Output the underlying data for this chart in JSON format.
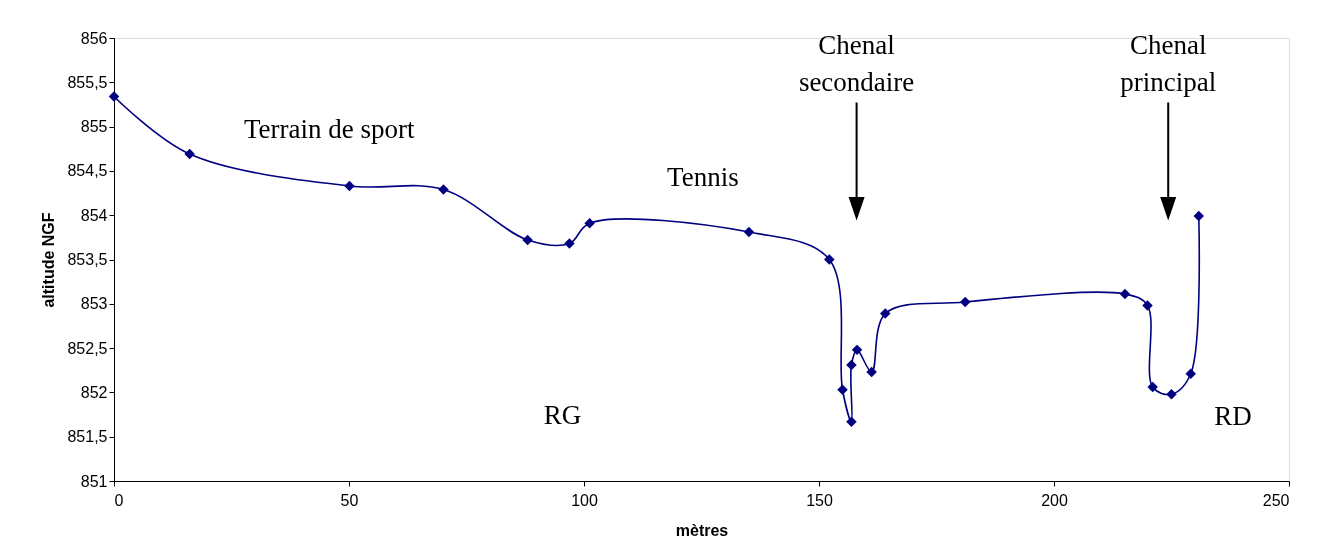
{
  "chart_data": {
    "type": "line",
    "xlabel": "mètres",
    "ylabel": "altitude NGF",
    "x": [
      0,
      16.1,
      50.1,
      70.1,
      88.0,
      96.9,
      101.2,
      135.1,
      152.2,
      155.0,
      156.9,
      156.9,
      158.1,
      161.2,
      164.1,
      181.1,
      215.1,
      219.9,
      221.0,
      225.0,
      229.1,
      230.8
    ],
    "series": [
      {
        "color": "#000080",
        "values": [
          855.34,
          854.69,
          854.33,
          854.29,
          853.72,
          853.68,
          853.91,
          853.81,
          853.5,
          852.03,
          851.67,
          852.31,
          852.48,
          852.23,
          852.89,
          853.02,
          853.11,
          852.98,
          852.06,
          851.98,
          852.21,
          853.99
        ]
      }
    ],
    "xlim": [
      0,
      250
    ],
    "xticks": [
      0,
      50,
      100,
      150,
      200,
      250
    ],
    "ylim": [
      851,
      856
    ],
    "yticks": [
      {
        "value": 851,
        "label": "851"
      },
      {
        "value": 851.5,
        "label": "851,5"
      },
      {
        "value": 852,
        "label": "852"
      },
      {
        "value": 852.5,
        "label": "852,5"
      },
      {
        "value": 853,
        "label": "853"
      },
      {
        "value": 853.5,
        "label": "853,5"
      },
      {
        "value": 854,
        "label": "854"
      },
      {
        "value": 854.5,
        "label": "854,5"
      },
      {
        "value": 855,
        "label": "855"
      },
      {
        "value": 855.5,
        "label": "855,5"
      },
      {
        "value": 856,
        "label": "856"
      }
    ],
    "marker": "diamond",
    "line_style": "solid",
    "grid": false,
    "annotations": [
      "Terrain de sport",
      "Tennis",
      "Chenal\nsecondaire",
      "Chenal\nprincipal",
      "RG",
      "RD"
    ]
  }
}
